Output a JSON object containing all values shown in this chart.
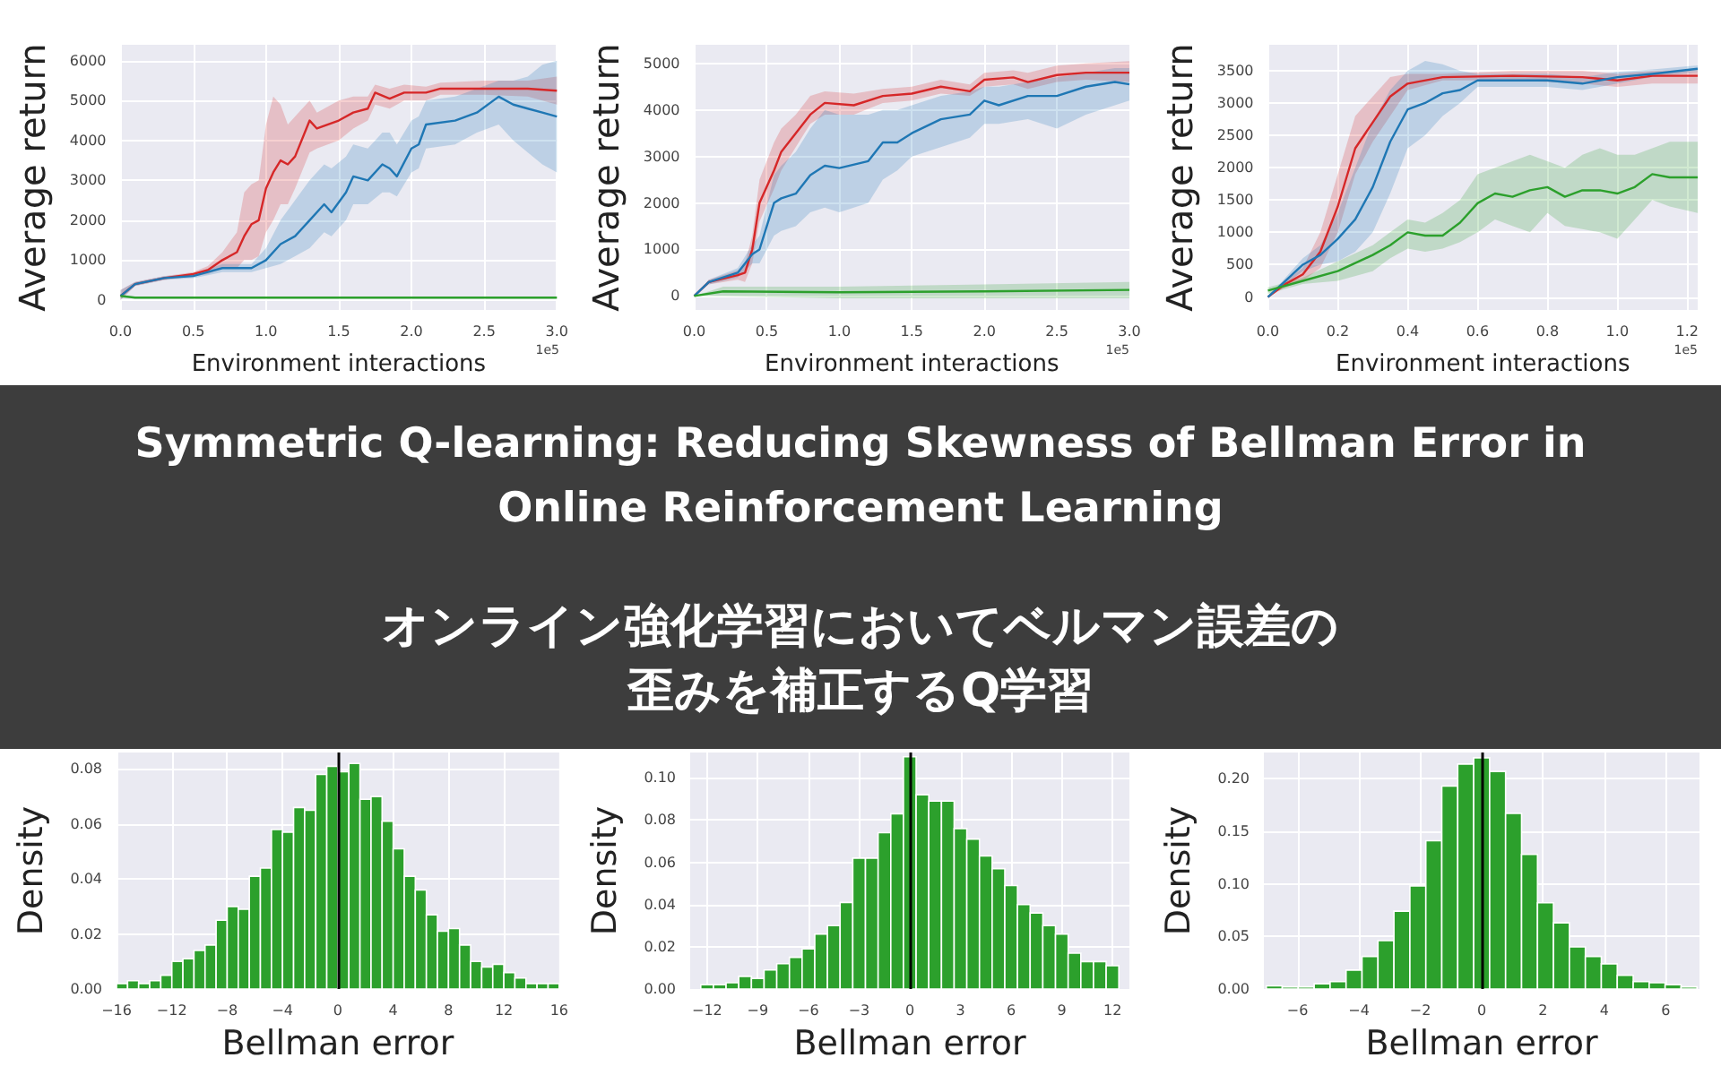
{
  "chart_data": [
    {
      "type": "line",
      "ylabel": "Average return",
      "xlabel": "Environment interactions",
      "annotations": [
        "1e5"
      ],
      "grid": true,
      "xlim": [
        0,
        3
      ],
      "ylim": [
        -250,
        6400
      ],
      "xticks": [
        {
          "value": 0,
          "label": "0.0"
        },
        {
          "value": 0.5,
          "label": "0.5"
        },
        {
          "value": 1,
          "label": "1.0"
        },
        {
          "value": 1.5,
          "label": "1.5"
        },
        {
          "value": 2,
          "label": "2.0"
        },
        {
          "value": 2.5,
          "label": "2.5"
        },
        {
          "value": 3,
          "label": "3.0"
        }
      ],
      "yticks": [
        0,
        1000,
        2000,
        3000,
        4000,
        5000,
        6000
      ],
      "series": [
        {
          "color": "#d62728",
          "x": [
            0,
            0.1,
            0.3,
            0.5,
            0.6,
            0.7,
            0.8,
            0.85,
            0.9,
            0.95,
            1.0,
            1.05,
            1.1,
            1.15,
            1.2,
            1.3,
            1.35,
            1.5,
            1.6,
            1.7,
            1.75,
            1.85,
            1.95,
            2.1,
            2.2,
            2.5,
            2.8,
            3.0
          ],
          "values": [
            100,
            400,
            550,
            650,
            750,
            1000,
            1200,
            1600,
            1900,
            2000,
            2800,
            3200,
            3500,
            3400,
            3600,
            4500,
            4300,
            4500,
            4700,
            4800,
            5200,
            5050,
            5200,
            5200,
            5300,
            5300,
            5300,
            5250
          ],
          "lower": [
            0,
            350,
            500,
            600,
            650,
            800,
            800,
            1000,
            1000,
            1100,
            1700,
            2000,
            2400,
            2400,
            2800,
            3700,
            3800,
            4000,
            4300,
            4500,
            4900,
            4800,
            5000,
            5000,
            5150,
            5150,
            5100,
            4900
          ],
          "upper": [
            250,
            450,
            600,
            700,
            850,
            1200,
            1700,
            2700,
            2900,
            3000,
            4400,
            5100,
            4900,
            4400,
            4600,
            5000,
            4700,
            5000,
            5100,
            5100,
            5400,
            5300,
            5400,
            5350,
            5450,
            5500,
            5500,
            5600
          ]
        },
        {
          "color": "#1f77b4",
          "x": [
            0,
            0.1,
            0.3,
            0.5,
            0.6,
            0.7,
            0.9,
            1.0,
            1.1,
            1.2,
            1.3,
            1.4,
            1.45,
            1.55,
            1.6,
            1.7,
            1.8,
            1.85,
            1.9,
            2.0,
            2.05,
            2.1,
            2.3,
            2.45,
            2.6,
            2.7,
            2.8,
            2.9,
            3.0
          ],
          "values": [
            100,
            400,
            550,
            600,
            700,
            800,
            800,
            1000,
            1400,
            1600,
            2000,
            2400,
            2200,
            2700,
            3100,
            3000,
            3400,
            3300,
            3100,
            3800,
            3900,
            4400,
            4500,
            4700,
            5100,
            4900,
            4800,
            4700,
            4600
          ],
          "lower": [
            0,
            350,
            500,
            550,
            620,
            700,
            700,
            800,
            900,
            1100,
            1300,
            1700,
            1600,
            2000,
            2400,
            2400,
            2700,
            2700,
            2600,
            3200,
            3300,
            3800,
            3900,
            4200,
            4400,
            4000,
            3700,
            3400,
            3200
          ],
          "upper": [
            250,
            450,
            600,
            650,
            780,
            900,
            900,
            1300,
            2000,
            2500,
            3000,
            3400,
            3300,
            3600,
            3900,
            3800,
            4200,
            4200,
            3900,
            4500,
            4600,
            5000,
            5100,
            5300,
            5500,
            5500,
            5600,
            5900,
            6000
          ]
        },
        {
          "color": "#2ca02c",
          "x": [
            0,
            0.1,
            3.0
          ],
          "values": [
            100,
            60,
            60
          ],
          "lower": [
            50,
            40,
            40
          ],
          "upper": [
            150,
            80,
            80
          ]
        }
      ]
    },
    {
      "type": "line",
      "ylabel": "Average return",
      "xlabel": "Environment interactions",
      "annotations": [
        "1e5"
      ],
      "grid": true,
      "xlim": [
        0,
        3
      ],
      "ylim": [
        -300,
        5400
      ],
      "xticks": [
        {
          "value": 0,
          "label": "0.0"
        },
        {
          "value": 0.5,
          "label": "0.5"
        },
        {
          "value": 1,
          "label": "1.0"
        },
        {
          "value": 1.5,
          "label": "1.5"
        },
        {
          "value": 2,
          "label": "2.0"
        },
        {
          "value": 2.5,
          "label": "2.5"
        },
        {
          "value": 3,
          "label": "3.0"
        }
      ],
      "yticks": [
        0,
        1000,
        2000,
        3000,
        4000,
        5000
      ],
      "series": [
        {
          "color": "#d62728",
          "x": [
            0,
            0.1,
            0.3,
            0.35,
            0.4,
            0.45,
            0.55,
            0.6,
            0.7,
            0.8,
            0.9,
            1.1,
            1.3,
            1.5,
            1.7,
            1.9,
            2.0,
            2.2,
            2.3,
            2.5,
            2.7,
            3.0
          ],
          "values": [
            0,
            300,
            450,
            500,
            1000,
            2000,
            2700,
            3100,
            3500,
            3900,
            4150,
            4100,
            4300,
            4350,
            4500,
            4400,
            4650,
            4700,
            4600,
            4750,
            4800,
            4800
          ],
          "lower": [
            0,
            250,
            350,
            300,
            700,
            1600,
            2300,
            2700,
            3200,
            3700,
            3900,
            3900,
            4150,
            4200,
            4350,
            4300,
            4500,
            4550,
            4450,
            4600,
            4650,
            4600
          ],
          "upper": [
            0,
            350,
            550,
            700,
            1300,
            2500,
            3300,
            3600,
            3900,
            4300,
            4400,
            4350,
            4450,
            4500,
            4650,
            4550,
            4800,
            4850,
            4800,
            4950,
            5000,
            5050
          ]
        },
        {
          "color": "#1f77b4",
          "x": [
            0,
            0.1,
            0.3,
            0.4,
            0.45,
            0.55,
            0.6,
            0.7,
            0.8,
            0.9,
            1.0,
            1.2,
            1.3,
            1.4,
            1.5,
            1.7,
            1.9,
            2.0,
            2.1,
            2.3,
            2.5,
            2.7,
            2.9,
            3.0
          ],
          "values": [
            0,
            300,
            500,
            900,
            1000,
            2000,
            2100,
            2200,
            2600,
            2800,
            2750,
            2900,
            3300,
            3300,
            3500,
            3800,
            3900,
            4200,
            4100,
            4300,
            4300,
            4500,
            4600,
            4550
          ],
          "lower": [
            0,
            250,
            400,
            700,
            700,
            1300,
            1400,
            1500,
            1800,
            1900,
            1800,
            2000,
            2500,
            2700,
            3000,
            3200,
            3400,
            3700,
            3700,
            3800,
            3600,
            3900,
            4100,
            4200
          ],
          "upper": [
            0,
            350,
            600,
            1100,
            1300,
            2600,
            2800,
            3100,
            3600,
            4000,
            3900,
            3900,
            4000,
            4000,
            4100,
            4300,
            4400,
            4500,
            4500,
            4600,
            4700,
            4800,
            4900,
            4900
          ]
        },
        {
          "color": "#2ca02c",
          "x": [
            0,
            0.2,
            1.0,
            2.0,
            3.0
          ],
          "values": [
            0,
            100,
            80,
            100,
            130
          ],
          "lower": [
            0,
            0,
            -50,
            -50,
            -50
          ],
          "upper": [
            0,
            200,
            200,
            250,
            300
          ]
        }
      ]
    },
    {
      "type": "line",
      "ylabel": "Average return",
      "xlabel": "Environment interactions",
      "annotations": [
        "1e5"
      ],
      "grid": true,
      "xlim": [
        0,
        1.23
      ],
      "ylim": [
        -200,
        3900
      ],
      "xticks": [
        {
          "value": 0,
          "label": "0.0"
        },
        {
          "value": 0.2,
          "label": "0.2"
        },
        {
          "value": 0.4,
          "label": "0.4"
        },
        {
          "value": 0.6,
          "label": "0.6"
        },
        {
          "value": 0.8,
          "label": "0.8"
        },
        {
          "value": 1,
          "label": "1.0"
        },
        {
          "value": 1.2,
          "label": "1.2"
        }
      ],
      "yticks": [
        0,
        500,
        1000,
        1500,
        2000,
        2500,
        3000,
        3500
      ],
      "series": [
        {
          "color": "#d62728",
          "x": [
            0,
            0.05,
            0.1,
            0.15,
            0.2,
            0.25,
            0.3,
            0.35,
            0.4,
            0.5,
            0.7,
            0.9,
            1.0,
            1.1,
            1.23
          ],
          "values": [
            0,
            200,
            350,
            700,
            1400,
            2300,
            2700,
            3100,
            3300,
            3400,
            3420,
            3400,
            3350,
            3420,
            3420
          ],
          "lower": [
            0,
            150,
            250,
            450,
            1000,
            1900,
            2400,
            2800,
            3200,
            3350,
            3350,
            3300,
            3250,
            3300,
            3300
          ],
          "upper": [
            0,
            250,
            450,
            1000,
            1900,
            2800,
            3100,
            3400,
            3450,
            3450,
            3500,
            3500,
            3450,
            3500,
            3520
          ]
        },
        {
          "color": "#1f77b4",
          "x": [
            0,
            0.05,
            0.1,
            0.15,
            0.2,
            0.25,
            0.3,
            0.35,
            0.4,
            0.45,
            0.5,
            0.55,
            0.6,
            0.8,
            0.9,
            1.0,
            1.1,
            1.23
          ],
          "values": [
            0,
            250,
            500,
            650,
            900,
            1200,
            1700,
            2400,
            2900,
            3000,
            3150,
            3200,
            3350,
            3350,
            3300,
            3400,
            3450,
            3530
          ],
          "lower": [
            0,
            200,
            400,
            500,
            550,
            700,
            1000,
            1600,
            2300,
            2500,
            2800,
            3000,
            3250,
            3250,
            3200,
            3300,
            3400,
            3480
          ],
          "upper": [
            0,
            300,
            600,
            800,
            1300,
            2000,
            2700,
            3200,
            3500,
            3650,
            3600,
            3500,
            3450,
            3450,
            3400,
            3480,
            3520,
            3580
          ]
        },
        {
          "color": "#2ca02c",
          "x": [
            0,
            0.1,
            0.2,
            0.3,
            0.35,
            0.4,
            0.45,
            0.5,
            0.55,
            0.6,
            0.65,
            0.7,
            0.75,
            0.8,
            0.85,
            0.9,
            0.95,
            1.0,
            1.05,
            1.1,
            1.15,
            1.23
          ],
          "values": [
            100,
            250,
            400,
            650,
            800,
            1000,
            950,
            950,
            1150,
            1450,
            1600,
            1550,
            1650,
            1700,
            1550,
            1650,
            1650,
            1600,
            1700,
            1900,
            1850,
            1850
          ],
          "lower": [
            50,
            200,
            250,
            400,
            600,
            750,
            700,
            750,
            850,
            1000,
            1200,
            1100,
            1000,
            1300,
            1100,
            1050,
            1000,
            900,
            1200,
            1500,
            1400,
            1300
          ],
          "upper": [
            150,
            300,
            550,
            800,
            1000,
            1200,
            1150,
            1300,
            1500,
            1900,
            2000,
            2100,
            2200,
            2100,
            2000,
            2200,
            2300,
            2200,
            2200,
            2300,
            2400,
            2400
          ]
        }
      ]
    },
    {
      "type": "other",
      "title": "Symmetric Q-learning: Reducing Skewness of Bellman Error in Online Reinforcement Learning",
      "subtitle": "オンライン強化学習においてベルマン誤差の歪みを補正するQ学習"
    },
    {
      "type": "histogram",
      "ylabel": "Density",
      "xlabel": "Bellman error",
      "grid": true,
      "color": "#2ca02c",
      "xlim": [
        -16,
        16
      ],
      "ylim": [
        0,
        0.086
      ],
      "xticks": [
        {
          "value": -16,
          "label": "−16"
        },
        {
          "value": -12,
          "label": "−12"
        },
        {
          "value": -8,
          "label": "−8"
        },
        {
          "value": -4,
          "label": "−4"
        },
        0,
        4,
        8,
        12,
        16
      ],
      "yticks": [
        {
          "value": 0,
          "label": "0.00"
        },
        {
          "value": 0.02,
          "label": "0.02"
        },
        {
          "value": 0.04,
          "label": "0.04"
        },
        {
          "value": 0.06,
          "label": "0.06"
        },
        {
          "value": 0.08,
          "label": "0.08"
        }
      ],
      "bins": [
        -16,
        -15.2,
        -14.4,
        -13.6,
        -12.8,
        -12,
        -11.2,
        -10.4,
        -9.6,
        -8.8,
        -8,
        -7.2,
        -6.4,
        -5.6,
        -4.8,
        -4,
        -3.2,
        -2.4,
        -1.6,
        -0.8,
        0,
        0.8,
        1.6,
        2.4,
        3.2,
        4,
        4.8,
        5.6,
        6.4,
        7.2,
        8,
        8.8,
        9.6,
        10.4,
        11.2,
        12,
        12.8,
        13.6,
        14.4,
        15.2,
        16
      ],
      "values": [
        0.002,
        0.003,
        0.002,
        0.003,
        0.005,
        0.01,
        0.011,
        0.014,
        0.016,
        0.025,
        0.03,
        0.029,
        0.041,
        0.044,
        0.058,
        0.057,
        0.066,
        0.065,
        0.078,
        0.081,
        0.079,
        0.082,
        0.069,
        0.07,
        0.061,
        0.051,
        0.041,
        0.036,
        0.027,
        0.021,
        0.022,
        0.016,
        0.01,
        0.008,
        0.009,
        0.006,
        0.004,
        0.002,
        0.002,
        0.002
      ],
      "ref_lines": [
        {
          "axis": "x",
          "value": 0,
          "color": "#000000"
        }
      ]
    },
    {
      "type": "histogram",
      "ylabel": "Density",
      "xlabel": "Bellman error",
      "grid": true,
      "color": "#2ca02c",
      "xlim": [
        -13,
        13
      ],
      "ylim": [
        0,
        0.112
      ],
      "xticks": [
        {
          "value": -12,
          "label": "−12"
        },
        {
          "value": -9,
          "label": "−9"
        },
        {
          "value": -6,
          "label": "−6"
        },
        {
          "value": -3,
          "label": "−3"
        },
        0,
        3,
        6,
        9,
        12
      ],
      "yticks": [
        {
          "value": 0,
          "label": "0.00"
        },
        {
          "value": 0.02,
          "label": "0.02"
        },
        {
          "value": 0.04,
          "label": "0.04"
        },
        {
          "value": 0.06,
          "label": "0.06"
        },
        {
          "value": 0.08,
          "label": "0.08"
        },
        {
          "value": 0.1,
          "label": "0.10"
        }
      ],
      "bins": [
        -12.375,
        -11.625,
        -10.875,
        -10.125,
        -9.375,
        -8.625,
        -7.875,
        -7.125,
        -6.375,
        -5.625,
        -4.875,
        -4.125,
        -3.375,
        -2.625,
        -1.875,
        -1.125,
        -0.375,
        0.375,
        1.125,
        1.875,
        2.625,
        3.375,
        4.125,
        4.875,
        5.625,
        6.375,
        7.125,
        7.875,
        8.625,
        9.375,
        10.125,
        10.875,
        11.625,
        12.375
      ],
      "values": [
        0.002,
        0.002,
        0.003,
        0.006,
        0.005,
        0.009,
        0.012,
        0.015,
        0.019,
        0.026,
        0.03,
        0.041,
        0.062,
        0.062,
        0.074,
        0.083,
        0.11,
        0.092,
        0.089,
        0.089,
        0.076,
        0.071,
        0.063,
        0.057,
        0.049,
        0.04,
        0.036,
        0.03,
        0.026,
        0.017,
        0.013,
        0.013,
        0.011
      ],
      "ref_lines": [
        {
          "axis": "x",
          "value": 0,
          "color": "#000000"
        }
      ]
    },
    {
      "type": "histogram",
      "ylabel": "Density",
      "xlabel": "Bellman error",
      "grid": true,
      "color": "#2ca02c",
      "xlim": [
        -7.1,
        7.1
      ],
      "ylim": [
        0,
        0.225
      ],
      "xticks": [
        {
          "value": -6,
          "label": "−6"
        },
        {
          "value": -4,
          "label": "−4"
        },
        {
          "value": -2,
          "label": "−2"
        },
        0,
        2,
        4,
        6
      ],
      "yticks": [
        {
          "value": 0,
          "label": "0.00"
        },
        {
          "value": 0.05,
          "label": "0.05"
        },
        {
          "value": 0.1,
          "label": "0.10"
        },
        {
          "value": 0.15,
          "label": "0.15"
        },
        {
          "value": 0.2,
          "label": "0.20"
        }
      ],
      "bins": [
        -7.02,
        -6.5,
        -5.98,
        -5.46,
        -4.94,
        -4.42,
        -3.9,
        -3.38,
        -2.86,
        -2.34,
        -1.82,
        -1.3,
        -0.78,
        -0.26,
        0.26,
        0.78,
        1.3,
        1.82,
        2.34,
        2.86,
        3.38,
        3.9,
        4.42,
        4.94,
        5.46,
        5.98,
        6.5,
        7.02
      ],
      "values": [
        0.003,
        0.002,
        0.002,
        0.005,
        0.007,
        0.018,
        0.031,
        0.046,
        0.074,
        0.098,
        0.141,
        0.193,
        0.214,
        0.22,
        0.207,
        0.167,
        0.128,
        0.082,
        0.063,
        0.04,
        0.031,
        0.024,
        0.013,
        0.007,
        0.006,
        0.004,
        0.002
      ],
      "ref_lines": [
        {
          "axis": "x",
          "value": 0,
          "color": "#000000"
        }
      ]
    }
  ]
}
